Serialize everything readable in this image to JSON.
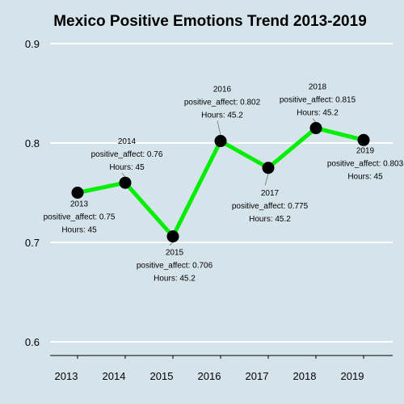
{
  "chart_data": {
    "type": "line",
    "title": "Mexico Positive Emotions Trend 2013-2019",
    "xlabel": "",
    "ylabel": "",
    "ylim": [
      0.6,
      0.9
    ],
    "y_ticks": [
      "0.6",
      "0.7",
      "0.8",
      "0.9"
    ],
    "x": [
      "2013",
      "2014",
      "2015",
      "2016",
      "2017",
      "2018",
      "2019"
    ],
    "series": [
      {
        "values": [
          0.75,
          0.76,
          0.706,
          0.802,
          0.775,
          0.815,
          0.803
        ]
      }
    ],
    "annotations": [
      {
        "year": "2013",
        "affect": "positive_affect: 0.75",
        "hours": "Hours: 45"
      },
      {
        "year": "2014",
        "affect": "positive_affect: 0.76",
        "hours": "Hours: 45"
      },
      {
        "year": "2015",
        "affect": "positive_affect: 0.706",
        "hours": "Hours: 45.2"
      },
      {
        "year": "2016",
        "affect": "positive_affect: 0.802",
        "hours": "Hours: 45.2"
      },
      {
        "year": "2017",
        "affect": "positive_affect: 0.775",
        "hours": "Hours: 45.2"
      },
      {
        "year": "2018",
        "affect": "positive_affect: 0.815",
        "hours": "Hours: 45.2"
      },
      {
        "year": "2019",
        "affect": "positive_affect: 0.803",
        "hours": "Hours: 45"
      }
    ],
    "grid": true,
    "legend": "none",
    "colors": {
      "background": "#d5e4eb",
      "line": "#00ee00",
      "point": "#000000",
      "grid": "#ffffff"
    }
  }
}
